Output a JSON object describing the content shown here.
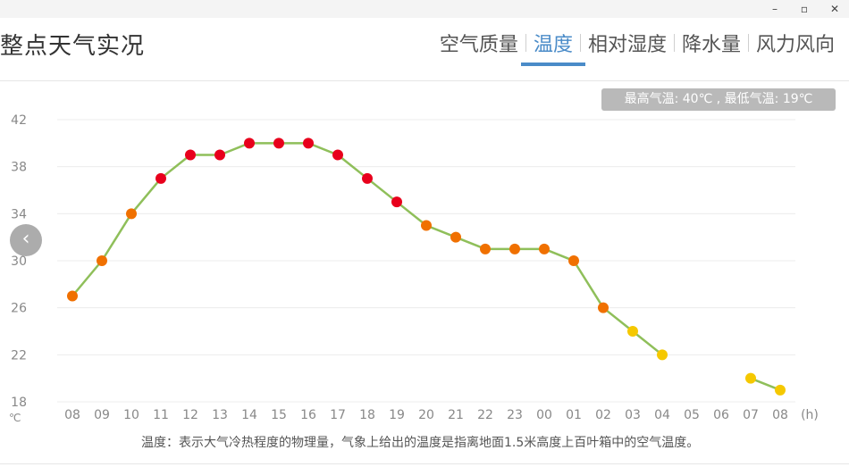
{
  "window": {
    "minimize_icon": "minimize-icon",
    "maximize_icon": "maximize-icon",
    "close_icon": "close-icon"
  },
  "header": {
    "title": "整点天气实况",
    "tabs": [
      {
        "label": "空气质量",
        "active": false
      },
      {
        "label": "温度",
        "active": true
      },
      {
        "label": "相对湿度",
        "active": false
      },
      {
        "label": "降水量",
        "active": false
      },
      {
        "label": "风力风向",
        "active": false
      }
    ]
  },
  "summary_badge": "最高气温: 40℃ , 最低气温: 19℃",
  "footnote": "温度：表示大气冷热程度的物理量，气象上给出的温度是指离地面1.5米高度上百叶箱中的空气温度。",
  "colors": {
    "accent": "#4a8bc8",
    "line": "#8fbf5a",
    "hot": "#e8001c",
    "warm": "#f07000",
    "mild": "#f5c800"
  },
  "chart_data": {
    "type": "line",
    "x_unit": "(h)",
    "y_unit": "℃",
    "categories": [
      "08",
      "09",
      "10",
      "11",
      "12",
      "13",
      "14",
      "15",
      "16",
      "17",
      "18",
      "19",
      "20",
      "21",
      "22",
      "23",
      "00",
      "01",
      "02",
      "03",
      "04",
      "05",
      "06",
      "07",
      "08"
    ],
    "yticks": [
      42,
      38,
      34,
      30,
      26,
      22,
      18
    ],
    "ylim": [
      18,
      42
    ],
    "grid": true,
    "values": [
      27,
      30,
      34,
      37,
      39,
      39,
      40,
      40,
      40,
      39,
      37,
      35,
      33,
      32,
      31,
      31,
      31,
      30,
      26,
      24,
      22,
      null,
      null,
      20,
      19
    ]
  }
}
